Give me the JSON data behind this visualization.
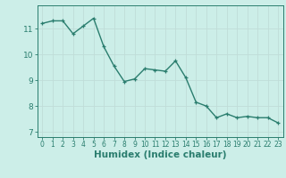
{
  "x": [
    0,
    1,
    2,
    3,
    4,
    5,
    6,
    7,
    8,
    9,
    10,
    11,
    12,
    13,
    14,
    15,
    16,
    17,
    18,
    19,
    20,
    21,
    22,
    23
  ],
  "y": [
    11.2,
    11.3,
    11.3,
    10.8,
    11.1,
    11.4,
    10.3,
    9.55,
    8.95,
    9.05,
    9.45,
    9.4,
    9.35,
    9.75,
    9.1,
    8.15,
    8.0,
    7.55,
    7.7,
    7.55,
    7.6,
    7.55,
    7.55,
    7.35
  ],
  "line_color": "#2a7d6e",
  "marker": "+",
  "markersize": 3.5,
  "linewidth": 1.0,
  "xlabel": "Humidex (Indice chaleur)",
  "xlabel_fontsize": 7.5,
  "ylim": [
    6.8,
    11.9
  ],
  "xlim": [
    -0.5,
    23.5
  ],
  "yticks": [
    7,
    8,
    9,
    10,
    11
  ],
  "xticks": [
    0,
    1,
    2,
    3,
    4,
    5,
    6,
    7,
    8,
    9,
    10,
    11,
    12,
    13,
    14,
    15,
    16,
    17,
    18,
    19,
    20,
    21,
    22,
    23
  ],
  "grid_color": "#c0ddd8",
  "bg_color": "#cceee8",
  "tick_color": "#2a7d6e",
  "tick_fontsize": 5.5,
  "ytick_fontsize": 6.5
}
